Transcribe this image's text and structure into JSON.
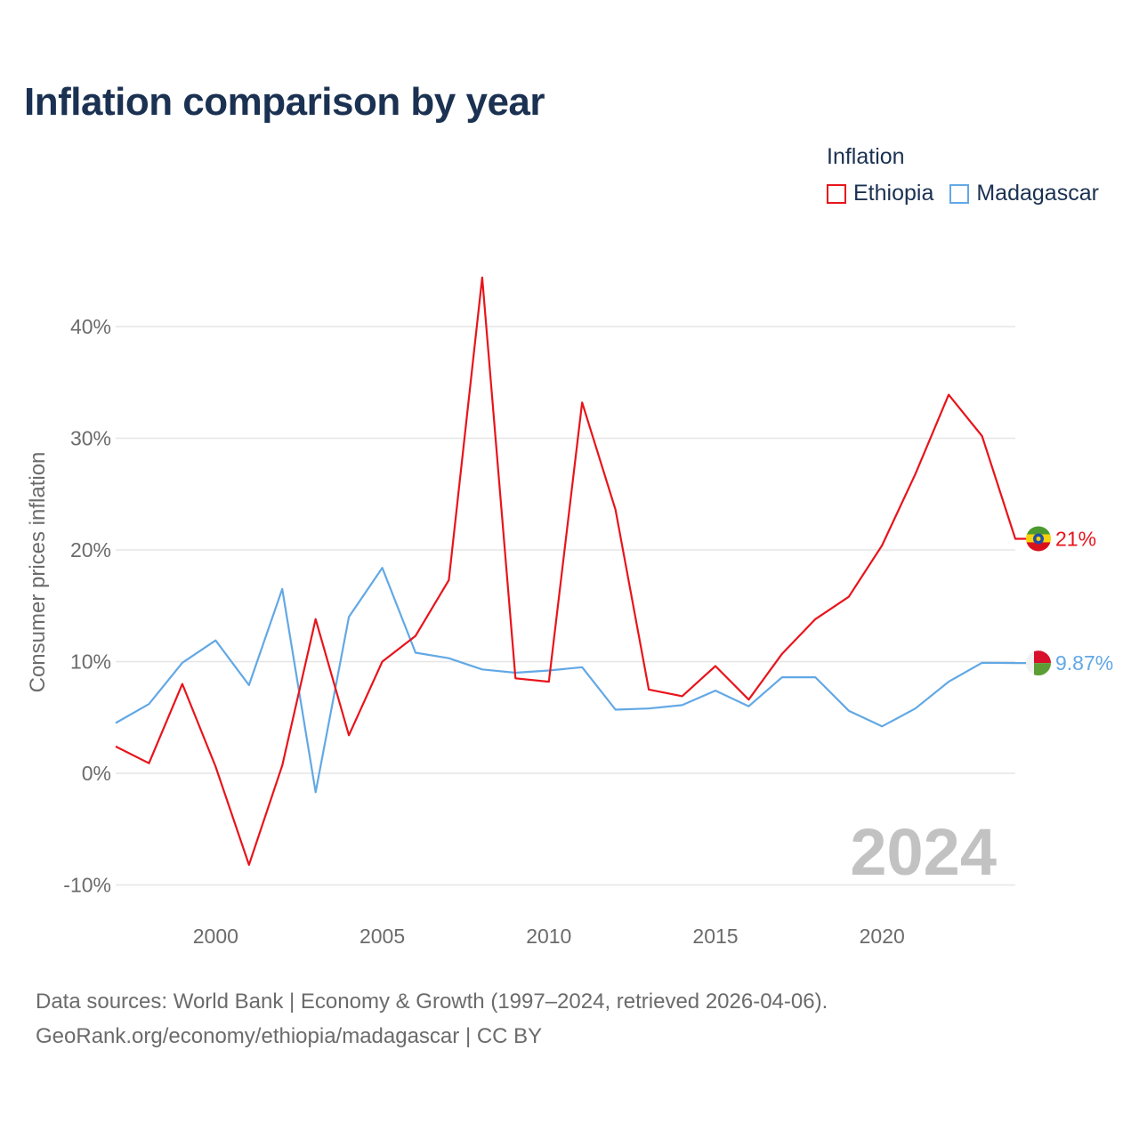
{
  "title": "Inflation comparison by year",
  "legend": {
    "title": "Inflation",
    "items": [
      {
        "label": "Ethiopia",
        "color": "#e8141b"
      },
      {
        "label": "Madagascar",
        "color": "#62a8e5"
      }
    ]
  },
  "chart_data": {
    "type": "line",
    "title": "Inflation comparison by year",
    "xlabel": "",
    "ylabel": "Consumer prices inflation",
    "xlim": [
      1997,
      2024
    ],
    "ylim": [
      -10,
      45
    ],
    "yticks": [
      -10,
      0,
      10,
      20,
      30,
      40
    ],
    "ytick_labels": [
      "-10%",
      "0%",
      "10%",
      "20%",
      "30%",
      "40%"
    ],
    "xticks": [
      2000,
      2005,
      2010,
      2015,
      2020
    ],
    "xtick_labels": [
      "2000",
      "2005",
      "2010",
      "2015",
      "2020"
    ],
    "x": [
      1997,
      1998,
      1999,
      2000,
      2001,
      2002,
      2003,
      2004,
      2005,
      2006,
      2007,
      2008,
      2009,
      2010,
      2011,
      2012,
      2013,
      2014,
      2015,
      2016,
      2017,
      2018,
      2019,
      2020,
      2021,
      2022,
      2023,
      2024
    ],
    "series": [
      {
        "name": "Ethiopia",
        "color": "#e8141b",
        "values": [
          2.4,
          0.9,
          8.0,
          0.6,
          -8.2,
          0.7,
          13.8,
          3.4,
          10.0,
          12.3,
          17.3,
          44.4,
          8.5,
          8.2,
          33.2,
          23.6,
          7.5,
          6.9,
          9.6,
          6.6,
          10.7,
          13.8,
          15.8,
          20.4,
          26.8,
          33.9,
          30.2,
          21.0
        ],
        "end_label": "21%"
      },
      {
        "name": "Madagascar",
        "color": "#62a8e5",
        "values": [
          4.5,
          6.2,
          9.9,
          11.9,
          7.9,
          16.5,
          -1.7,
          14.0,
          18.4,
          10.8,
          10.3,
          9.3,
          9.0,
          9.2,
          9.5,
          5.7,
          5.8,
          6.1,
          7.4,
          6.0,
          8.6,
          8.6,
          5.6,
          4.2,
          5.8,
          8.2,
          9.9,
          9.87
        ],
        "end_label": "9.87%"
      }
    ],
    "watermark": "2024",
    "grid": true
  },
  "source": {
    "line1": "Data sources: World Bank | Economy & Growth (1997–2024, retrieved 2026-04-06).",
    "line2": "GeoRank.org/economy/ethiopia/madagascar | CC BY"
  }
}
